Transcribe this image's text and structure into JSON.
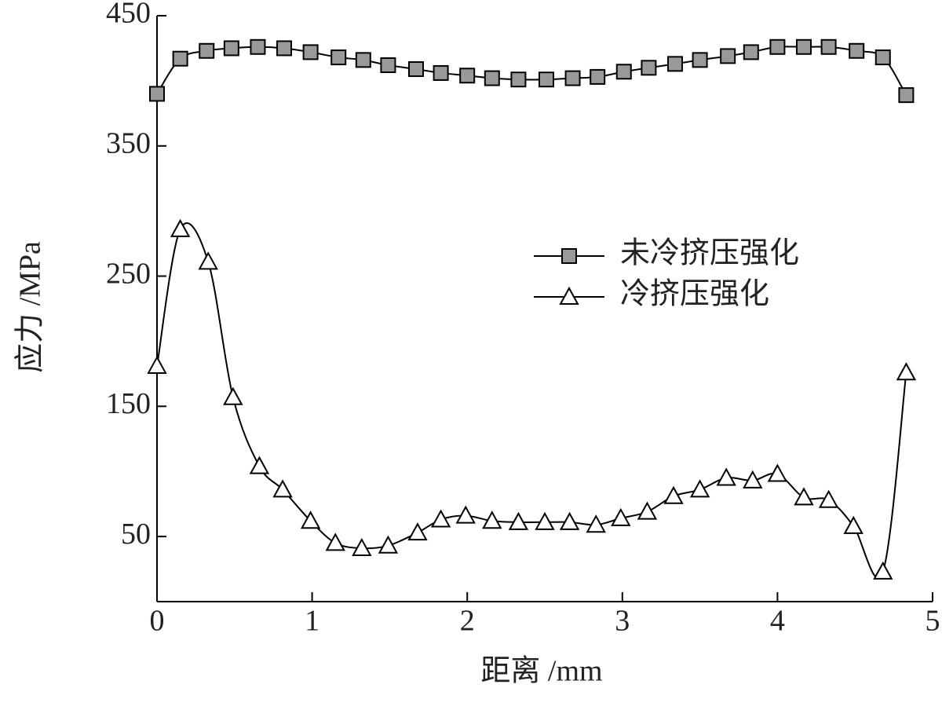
{
  "chart_data": {
    "type": "line",
    "xlabel": "距离 /mm",
    "ylabel": "应力 /MPa",
    "xlim": [
      0,
      5
    ],
    "ylim": [
      0,
      450
    ],
    "xticks": [
      0,
      1,
      2,
      3,
      4,
      5
    ],
    "yticks": [
      50,
      150,
      250,
      350,
      450
    ],
    "legend": "right",
    "series": [
      {
        "name": "未冷挤压强化",
        "color": "#000000",
        "marker": "square",
        "x": [
          0,
          0.15,
          0.32,
          0.48,
          0.65,
          0.82,
          0.99,
          1.17,
          1.33,
          1.49,
          1.67,
          1.83,
          2.0,
          2.16,
          2.33,
          2.51,
          2.68,
          2.84,
          3.01,
          3.17,
          3.34,
          3.5,
          3.68,
          3.83,
          4.0,
          4.17,
          4.33,
          4.51,
          4.68,
          4.83
        ],
        "values": [
          390,
          417,
          423,
          425,
          426,
          425,
          422,
          418,
          416,
          412,
          409,
          406,
          404,
          402,
          401,
          401,
          402,
          403,
          407,
          410,
          413,
          416,
          419,
          422,
          426,
          426,
          426,
          423,
          418,
          389
        ]
      },
      {
        "name": "冷挤压强化",
        "color": "#000000",
        "marker": "triangle",
        "x": [
          0,
          0.15,
          0.33,
          0.49,
          0.66,
          0.81,
          0.99,
          1.15,
          1.32,
          1.49,
          1.68,
          1.83,
          1.99,
          2.16,
          2.33,
          2.5,
          2.66,
          2.83,
          2.99,
          3.16,
          3.33,
          3.5,
          3.67,
          3.84,
          4.0,
          4.17,
          4.33,
          4.49,
          4.68,
          4.83
        ],
        "values": [
          181,
          286,
          261,
          157,
          104,
          86,
          62,
          45,
          41,
          43,
          53,
          63,
          66,
          62,
          61,
          61,
          61,
          59,
          64,
          69,
          81,
          86,
          95,
          93,
          98,
          80,
          78,
          58,
          23,
          176
        ]
      }
    ]
  }
}
